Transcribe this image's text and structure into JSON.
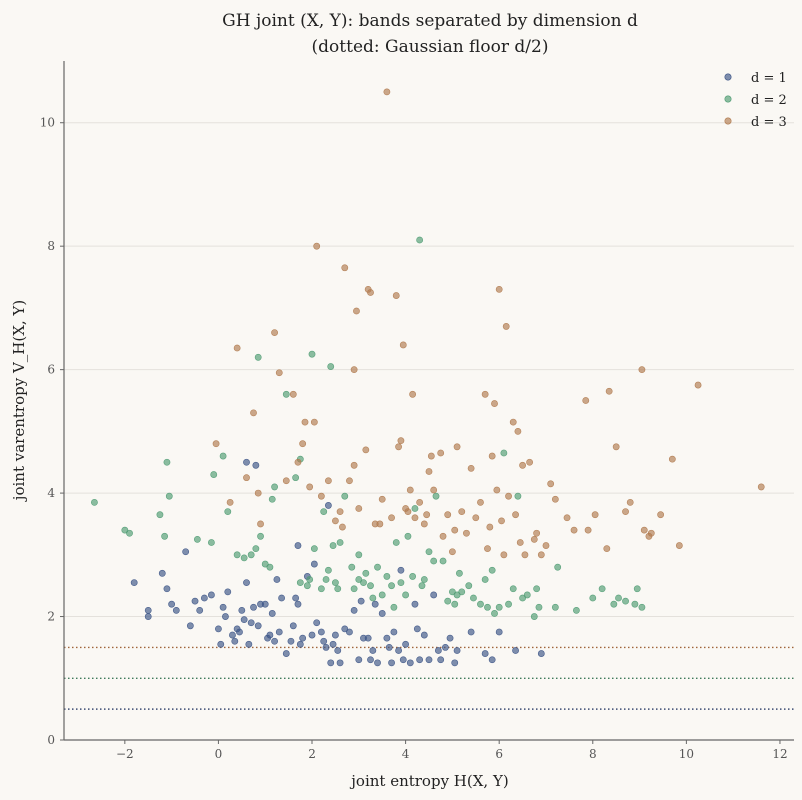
{
  "chart_data": {
    "type": "scatter",
    "title_line1": "GH joint (X, Y): bands separated by dimension d",
    "title_line2": "(dotted: Gaussian floor d/2)",
    "xlabel": "joint entropy H(X, Y)",
    "ylabel": "joint varentropy V_H(X, Y)",
    "xlim": [
      -3.3,
      12.3
    ],
    "ylim": [
      0,
      11
    ],
    "xticks": [
      -2,
      0,
      2,
      4,
      6,
      8,
      10,
      12
    ],
    "xtick_labels": [
      "−2",
      "0",
      "2",
      "4",
      "6",
      "8",
      "10",
      "12"
    ],
    "yticks": [
      0,
      2,
      4,
      6,
      8,
      10
    ],
    "ytick_labels": [
      "0",
      "2",
      "4",
      "6",
      "8",
      "10"
    ],
    "grid": "horizontal",
    "legend_position": "top-right",
    "legend_labels": [
      "d = 1",
      "d = 2",
      "d = 3"
    ],
    "reference_lines": [
      {
        "y": 0.5,
        "style": "dotted",
        "color": "#3a4a72"
      },
      {
        "y": 1.0,
        "style": "dotted",
        "color": "#3f7a5a"
      },
      {
        "y": 1.5,
        "style": "dotted",
        "color": "#a0643a"
      }
    ],
    "series": [
      {
        "name": "d = 1",
        "color": "#3b5385",
        "points": [
          [
            -1.8,
            2.55
          ],
          [
            -1.5,
            2.0
          ],
          [
            -1.5,
            2.1
          ],
          [
            -1.2,
            2.7
          ],
          [
            -1.1,
            2.45
          ],
          [
            -1.0,
            2.2
          ],
          [
            -0.9,
            2.1
          ],
          [
            -0.7,
            3.05
          ],
          [
            -0.6,
            1.85
          ],
          [
            -0.5,
            2.25
          ],
          [
            -0.4,
            2.1
          ],
          [
            -0.3,
            2.3
          ],
          [
            -0.15,
            2.35
          ],
          [
            0.0,
            1.8
          ],
          [
            0.05,
            1.55
          ],
          [
            0.1,
            2.15
          ],
          [
            0.15,
            2.0
          ],
          [
            0.2,
            2.4
          ],
          [
            0.3,
            1.7
          ],
          [
            0.35,
            1.6
          ],
          [
            0.4,
            1.8
          ],
          [
            0.45,
            1.75
          ],
          [
            0.5,
            2.1
          ],
          [
            0.55,
            1.95
          ],
          [
            0.6,
            2.55
          ],
          [
            0.6,
            4.5
          ],
          [
            0.65,
            1.55
          ],
          [
            0.7,
            1.9
          ],
          [
            0.75,
            2.15
          ],
          [
            0.8,
            4.45
          ],
          [
            0.85,
            1.85
          ],
          [
            0.9,
            2.2
          ],
          [
            1.0,
            2.2
          ],
          [
            1.05,
            1.65
          ],
          [
            1.1,
            1.7
          ],
          [
            1.15,
            2.05
          ],
          [
            1.2,
            1.6
          ],
          [
            1.25,
            2.6
          ],
          [
            1.3,
            1.75
          ],
          [
            1.35,
            2.3
          ],
          [
            1.45,
            1.4
          ],
          [
            1.55,
            1.6
          ],
          [
            1.6,
            1.85
          ],
          [
            1.65,
            2.3
          ],
          [
            1.7,
            2.2
          ],
          [
            1.7,
            3.15
          ],
          [
            1.75,
            1.55
          ],
          [
            1.8,
            1.65
          ],
          [
            1.9,
            2.65
          ],
          [
            2.0,
            1.7
          ],
          [
            2.05,
            2.85
          ],
          [
            2.1,
            1.9
          ],
          [
            2.2,
            1.75
          ],
          [
            2.25,
            1.6
          ],
          [
            2.3,
            1.5
          ],
          [
            2.35,
            3.8
          ],
          [
            2.4,
            1.25
          ],
          [
            2.45,
            1.55
          ],
          [
            2.5,
            1.7
          ],
          [
            2.55,
            1.45
          ],
          [
            2.6,
            1.25
          ],
          [
            2.7,
            1.8
          ],
          [
            2.8,
            1.75
          ],
          [
            2.9,
            2.1
          ],
          [
            3.0,
            1.3
          ],
          [
            3.05,
            2.25
          ],
          [
            3.1,
            1.65
          ],
          [
            3.2,
            1.65
          ],
          [
            3.25,
            1.3
          ],
          [
            3.3,
            1.45
          ],
          [
            3.35,
            2.2
          ],
          [
            3.4,
            1.25
          ],
          [
            3.5,
            2.05
          ],
          [
            3.6,
            1.65
          ],
          [
            3.65,
            1.5
          ],
          [
            3.7,
            1.25
          ],
          [
            3.75,
            1.75
          ],
          [
            3.85,
            1.45
          ],
          [
            3.9,
            2.75
          ],
          [
            3.95,
            1.3
          ],
          [
            4.0,
            1.55
          ],
          [
            4.1,
            1.25
          ],
          [
            4.2,
            2.2
          ],
          [
            4.25,
            1.8
          ],
          [
            4.3,
            1.3
          ],
          [
            4.4,
            1.7
          ],
          [
            4.5,
            1.3
          ],
          [
            4.6,
            2.35
          ],
          [
            4.7,
            1.45
          ],
          [
            4.75,
            1.3
          ],
          [
            4.85,
            1.5
          ],
          [
            4.95,
            1.65
          ],
          [
            5.05,
            1.25
          ],
          [
            5.1,
            1.45
          ],
          [
            5.4,
            1.75
          ],
          [
            5.7,
            1.4
          ],
          [
            5.85,
            1.3
          ],
          [
            6.0,
            1.75
          ],
          [
            6.35,
            1.45
          ],
          [
            6.9,
            1.4
          ]
        ]
      },
      {
        "name": "d = 2",
        "color": "#4e9b72",
        "points": [
          [
            -2.65,
            3.85
          ],
          [
            -2.0,
            3.4
          ],
          [
            -1.9,
            3.35
          ],
          [
            -1.25,
            3.65
          ],
          [
            -1.15,
            3.3
          ],
          [
            -1.1,
            4.5
          ],
          [
            -1.05,
            3.95
          ],
          [
            -0.45,
            3.25
          ],
          [
            -0.15,
            3.2
          ],
          [
            -0.1,
            4.3
          ],
          [
            0.1,
            4.6
          ],
          [
            0.2,
            3.7
          ],
          [
            0.4,
            3.0
          ],
          [
            0.55,
            2.95
          ],
          [
            0.7,
            3.0
          ],
          [
            0.8,
            3.1
          ],
          [
            0.85,
            6.2
          ],
          [
            0.9,
            3.3
          ],
          [
            1.0,
            2.85
          ],
          [
            1.1,
            2.8
          ],
          [
            1.15,
            3.9
          ],
          [
            1.2,
            4.1
          ],
          [
            1.45,
            5.6
          ],
          [
            1.65,
            4.25
          ],
          [
            1.75,
            2.55
          ],
          [
            1.75,
            4.55
          ],
          [
            1.9,
            2.5
          ],
          [
            1.95,
            2.6
          ],
          [
            2.0,
            6.25
          ],
          [
            2.05,
            3.1
          ],
          [
            2.2,
            2.45
          ],
          [
            2.25,
            3.7
          ],
          [
            2.3,
            2.6
          ],
          [
            2.35,
            2.75
          ],
          [
            2.4,
            6.05
          ],
          [
            2.45,
            3.15
          ],
          [
            2.5,
            2.55
          ],
          [
            2.55,
            2.45
          ],
          [
            2.6,
            3.2
          ],
          [
            2.7,
            3.95
          ],
          [
            2.85,
            2.8
          ],
          [
            2.9,
            2.45
          ],
          [
            3.0,
            2.6
          ],
          [
            3.0,
            3.0
          ],
          [
            3.1,
            2.55
          ],
          [
            3.15,
            2.7
          ],
          [
            3.25,
            2.5
          ],
          [
            3.3,
            2.3
          ],
          [
            3.4,
            2.8
          ],
          [
            3.5,
            2.35
          ],
          [
            3.6,
            2.65
          ],
          [
            3.7,
            2.5
          ],
          [
            3.75,
            2.15
          ],
          [
            3.8,
            3.2
          ],
          [
            3.9,
            2.55
          ],
          [
            4.0,
            2.35
          ],
          [
            4.05,
            3.3
          ],
          [
            4.15,
            2.65
          ],
          [
            4.2,
            3.75
          ],
          [
            4.3,
            8.1
          ],
          [
            4.35,
            2.5
          ],
          [
            4.4,
            2.6
          ],
          [
            4.5,
            3.05
          ],
          [
            4.6,
            2.9
          ],
          [
            4.65,
            3.95
          ],
          [
            4.8,
            2.9
          ],
          [
            4.9,
            2.25
          ],
          [
            5.0,
            2.4
          ],
          [
            5.05,
            2.2
          ],
          [
            5.1,
            2.35
          ],
          [
            5.15,
            2.7
          ],
          [
            5.2,
            2.4
          ],
          [
            5.35,
            2.5
          ],
          [
            5.45,
            2.3
          ],
          [
            5.6,
            2.2
          ],
          [
            5.7,
            2.6
          ],
          [
            5.75,
            2.15
          ],
          [
            5.85,
            2.75
          ],
          [
            5.9,
            2.05
          ],
          [
            6.0,
            2.15
          ],
          [
            6.1,
            4.65
          ],
          [
            6.2,
            2.2
          ],
          [
            6.3,
            2.45
          ],
          [
            6.4,
            3.95
          ],
          [
            6.5,
            2.3
          ],
          [
            6.6,
            2.35
          ],
          [
            6.75,
            2.0
          ],
          [
            6.8,
            2.45
          ],
          [
            6.85,
            2.15
          ],
          [
            7.2,
            2.15
          ],
          [
            7.25,
            2.8
          ],
          [
            7.65,
            2.1
          ],
          [
            8.0,
            2.3
          ],
          [
            8.2,
            2.45
          ],
          [
            8.45,
            2.2
          ],
          [
            8.55,
            2.3
          ],
          [
            8.7,
            2.25
          ],
          [
            8.9,
            2.2
          ],
          [
            8.95,
            2.45
          ],
          [
            9.05,
            2.15
          ]
        ]
      },
      {
        "name": "d = 3",
        "color": "#b07a4e",
        "points": [
          [
            -0.05,
            4.8
          ],
          [
            0.25,
            3.85
          ],
          [
            0.4,
            6.35
          ],
          [
            0.6,
            4.25
          ],
          [
            0.75,
            5.3
          ],
          [
            0.85,
            4.0
          ],
          [
            0.9,
            3.5
          ],
          [
            1.2,
            6.6
          ],
          [
            1.3,
            5.95
          ],
          [
            1.45,
            4.2
          ],
          [
            1.6,
            5.6
          ],
          [
            1.7,
            4.5
          ],
          [
            1.8,
            4.8
          ],
          [
            1.85,
            5.15
          ],
          [
            1.95,
            4.1
          ],
          [
            2.05,
            5.15
          ],
          [
            2.1,
            8.0
          ],
          [
            2.2,
            3.95
          ],
          [
            2.35,
            4.2
          ],
          [
            2.5,
            3.55
          ],
          [
            2.6,
            3.7
          ],
          [
            2.65,
            3.45
          ],
          [
            2.7,
            7.65
          ],
          [
            2.8,
            4.2
          ],
          [
            2.9,
            4.45
          ],
          [
            2.9,
            6.0
          ],
          [
            2.95,
            6.95
          ],
          [
            3.0,
            3.75
          ],
          [
            3.15,
            4.7
          ],
          [
            3.2,
            7.3
          ],
          [
            3.25,
            7.25
          ],
          [
            3.35,
            3.5
          ],
          [
            3.45,
            3.5
          ],
          [
            3.5,
            3.9
          ],
          [
            3.6,
            10.5
          ],
          [
            3.7,
            3.6
          ],
          [
            3.8,
            7.2
          ],
          [
            3.85,
            4.75
          ],
          [
            3.9,
            4.85
          ],
          [
            3.95,
            6.4
          ],
          [
            4.0,
            3.75
          ],
          [
            4.05,
            3.7
          ],
          [
            4.1,
            4.05
          ],
          [
            4.15,
            5.6
          ],
          [
            4.2,
            3.6
          ],
          [
            4.3,
            3.85
          ],
          [
            4.4,
            3.5
          ],
          [
            4.45,
            3.65
          ],
          [
            4.5,
            4.35
          ],
          [
            4.55,
            4.6
          ],
          [
            4.6,
            4.05
          ],
          [
            4.75,
            4.65
          ],
          [
            4.8,
            3.3
          ],
          [
            4.9,
            3.65
          ],
          [
            5.0,
            3.05
          ],
          [
            5.05,
            3.4
          ],
          [
            5.1,
            4.75
          ],
          [
            5.2,
            3.7
          ],
          [
            5.3,
            3.35
          ],
          [
            5.4,
            4.4
          ],
          [
            5.5,
            3.6
          ],
          [
            5.6,
            3.85
          ],
          [
            5.7,
            5.6
          ],
          [
            5.75,
            3.1
          ],
          [
            5.8,
            3.45
          ],
          [
            5.85,
            4.6
          ],
          [
            5.9,
            5.45
          ],
          [
            5.95,
            4.05
          ],
          [
            6.0,
            7.3
          ],
          [
            6.05,
            3.55
          ],
          [
            6.1,
            3.0
          ],
          [
            6.15,
            6.7
          ],
          [
            6.2,
            3.95
          ],
          [
            6.3,
            5.15
          ],
          [
            6.35,
            3.65
          ],
          [
            6.4,
            5.0
          ],
          [
            6.45,
            3.2
          ],
          [
            6.5,
            4.45
          ],
          [
            6.55,
            3.0
          ],
          [
            6.65,
            4.5
          ],
          [
            6.75,
            3.25
          ],
          [
            6.8,
            3.35
          ],
          [
            6.9,
            3.0
          ],
          [
            7.0,
            3.15
          ],
          [
            7.1,
            4.15
          ],
          [
            7.2,
            3.9
          ],
          [
            7.45,
            3.6
          ],
          [
            7.6,
            3.4
          ],
          [
            7.85,
            5.5
          ],
          [
            7.9,
            3.4
          ],
          [
            8.05,
            3.65
          ],
          [
            8.3,
            3.1
          ],
          [
            8.35,
            5.65
          ],
          [
            8.5,
            4.75
          ],
          [
            8.7,
            3.7
          ],
          [
            8.8,
            3.85
          ],
          [
            9.05,
            6.0
          ],
          [
            9.1,
            3.4
          ],
          [
            9.2,
            3.3
          ],
          [
            9.25,
            3.35
          ],
          [
            9.45,
            3.65
          ],
          [
            9.7,
            4.55
          ],
          [
            9.85,
            3.15
          ],
          [
            10.25,
            5.75
          ],
          [
            11.6,
            4.1
          ]
        ]
      }
    ]
  }
}
